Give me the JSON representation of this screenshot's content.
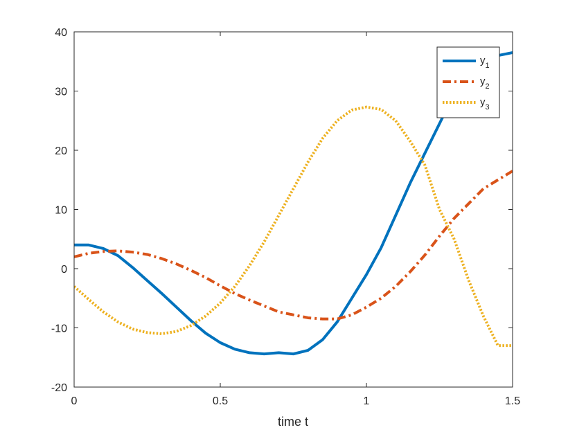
{
  "chart_data": {
    "type": "line",
    "title": "",
    "xlabel": "time t",
    "ylabel": "",
    "xlim": [
      0,
      1.5
    ],
    "ylim": [
      -20,
      40
    ],
    "xticks": [
      0,
      0.5,
      1,
      1.5
    ],
    "xtick_labels": [
      "0",
      "0.5",
      "1",
      "1.5"
    ],
    "yticks": [
      -20,
      -10,
      0,
      10,
      20,
      30,
      40
    ],
    "ytick_labels": [
      "-20",
      "-10",
      "0",
      "10",
      "20",
      "30",
      "40"
    ],
    "grid": false,
    "legend_position": "top-right",
    "x": [
      0,
      0.05,
      0.1,
      0.15,
      0.2,
      0.25,
      0.3,
      0.35,
      0.4,
      0.45,
      0.5,
      0.55,
      0.6,
      0.65,
      0.7,
      0.75,
      0.8,
      0.85,
      0.9,
      0.95,
      1.0,
      1.05,
      1.1,
      1.15,
      1.2,
      1.25,
      1.3,
      1.35,
      1.4,
      1.45,
      1.5
    ],
    "series": [
      {
        "name": "y",
        "subscript": "1",
        "color": "#0072BD",
        "dash": "solid",
        "values": [
          4,
          4,
          3.4,
          2.2,
          0.2,
          -2.0,
          -4.2,
          -6.5,
          -8.8,
          -10.9,
          -12.5,
          -13.6,
          -14.2,
          -14.4,
          -14.2,
          -14.4,
          -13.8,
          -12.0,
          -9.0,
          -5.0,
          -1.0,
          3.5,
          9.0,
          14.5,
          19.5,
          24.5,
          29.5,
          33.0,
          35.0,
          36.0,
          36.5
        ]
      },
      {
        "name": "y",
        "subscript": "2",
        "color": "#D95319",
        "dash": "dashdot",
        "values": [
          2,
          2.6,
          2.9,
          3.0,
          2.8,
          2.4,
          1.7,
          0.8,
          -0.3,
          -1.5,
          -2.9,
          -4.2,
          -5.3,
          -6.3,
          -7.3,
          -7.8,
          -8.3,
          -8.5,
          -8.5,
          -7.8,
          -6.5,
          -5.0,
          -3.0,
          -0.5,
          2.3,
          5.5,
          8.5,
          11.0,
          13.5,
          15.0,
          16.5
        ]
      },
      {
        "name": "y",
        "subscript": "3",
        "color": "#EDB120",
        "dash": "dotted",
        "values": [
          -3,
          -5.2,
          -7.3,
          -9.0,
          -10.2,
          -10.8,
          -11.0,
          -10.6,
          -9.6,
          -8.0,
          -5.8,
          -3.0,
          0.5,
          4.5,
          9.0,
          13.5,
          18.0,
          22.0,
          25.0,
          26.8,
          27.3,
          26.9,
          25.0,
          21.5,
          17.5,
          10.0,
          5.0,
          -2.0,
          -8.0,
          -13.0,
          -13.0
        ]
      }
    ]
  }
}
